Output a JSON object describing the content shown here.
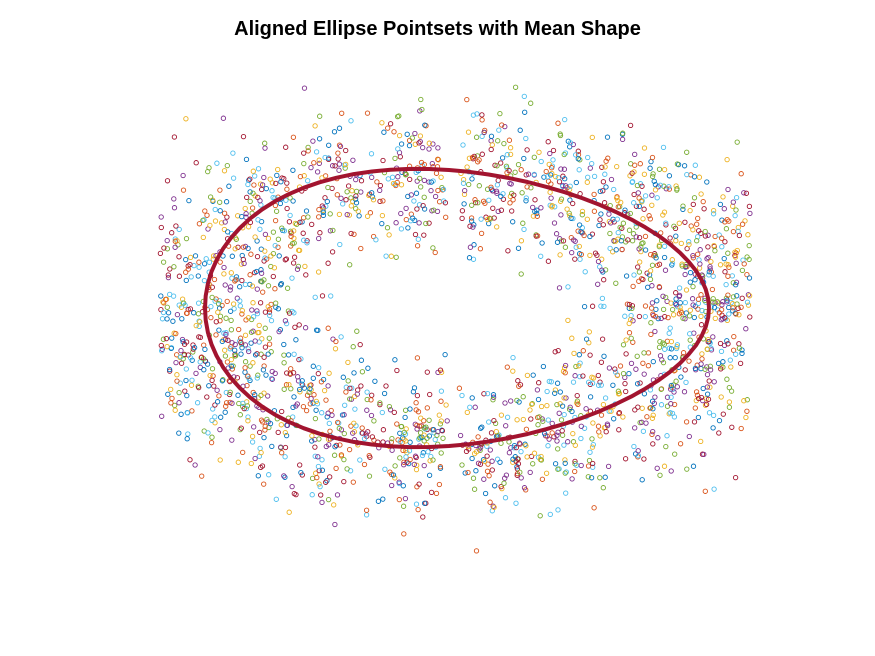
{
  "figure": {
    "title": "Aligned Ellipse Pointsets with Mean Shape"
  },
  "chart_data": {
    "type": "scatter",
    "title": "Aligned Ellipse Pointsets with Mean Shape",
    "xlabel": "",
    "ylabel": "",
    "axes_visible": false,
    "grid": false,
    "marker": "open-circle",
    "pointsets": {
      "description_only_count": 0,
      "palette": [
        "#0072BD",
        "#D95319",
        "#EDB120",
        "#7E2F8E",
        "#77AC30",
        "#4DBEEE",
        "#A2142F"
      ]
    },
    "mean_shape": {
      "name": "",
      "color": "#A2142F",
      "style": "line",
      "points": [
        [
          0.0,
          0.0
        ],
        [
          0.5,
          0.12
        ],
        [
          1.2,
          0.31
        ],
        [
          2.0,
          0.5
        ],
        [
          3.0,
          0.66
        ],
        [
          4.0,
          0.8
        ],
        [
          5.0,
          0.9
        ],
        [
          6.0,
          0.97
        ],
        [
          7.0,
          1.0
        ],
        [
          8.0,
          1.0
        ],
        [
          9.0,
          0.97
        ],
        [
          10.0,
          0.9
        ],
        [
          10.8,
          0.8
        ],
        [
          11.5,
          0.6
        ],
        [
          11.9,
          0.38
        ],
        [
          12.0,
          0.15
        ],
        [
          11.95,
          0.0
        ],
        [
          11.9,
          -0.15
        ],
        [
          11.7,
          -0.35
        ],
        [
          11.2,
          -0.55
        ],
        [
          10.5,
          -0.7
        ],
        [
          9.5,
          -0.85
        ],
        [
          8.5,
          -0.95
        ],
        [
          7.5,
          -1.0
        ],
        [
          6.5,
          -1.0
        ],
        [
          5.5,
          -0.98
        ],
        [
          4.5,
          -0.92
        ],
        [
          3.5,
          -0.82
        ],
        [
          2.5,
          -0.68
        ],
        [
          1.5,
          -0.5
        ],
        [
          0.7,
          -0.3
        ],
        [
          0.2,
          -0.12
        ],
        [
          0.0,
          0.0
        ]
      ]
    },
    "point_cloud": {
      "centre": [
        6.0,
        0.0
      ],
      "ring_semi_axes_outer": [
        8.6,
        1.75
      ],
      "ring_semi_axes_inner": [
        4.2,
        0.42
      ],
      "count": 2600
    }
  }
}
